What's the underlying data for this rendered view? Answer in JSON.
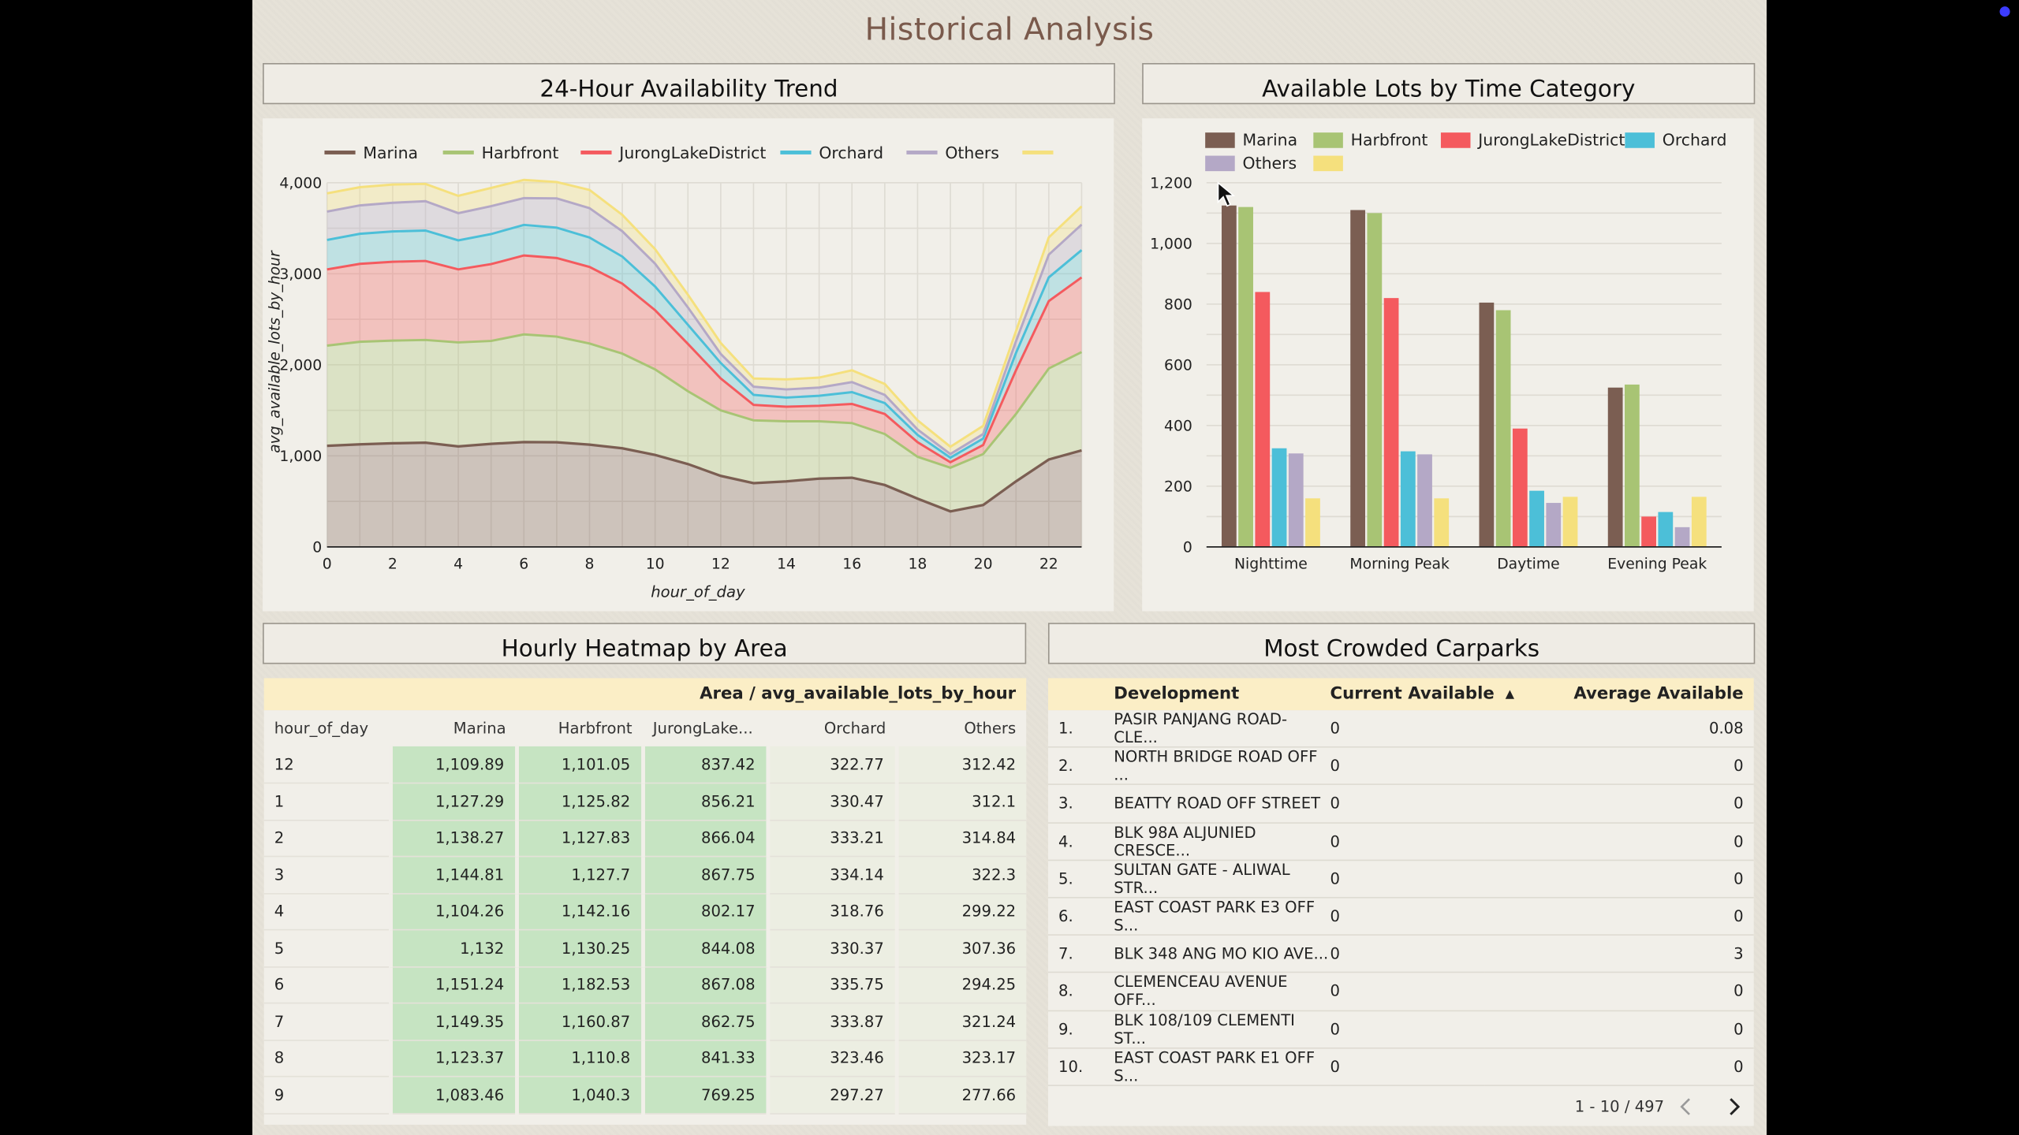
{
  "page": {
    "title": "Historical Analysis"
  },
  "trend": {
    "title": "24-Hour Availability Trend",
    "xlabel": "hour_of_day",
    "ylabel": "avg_available_lots_by_hour",
    "legend": [
      "Marina",
      "Harbfront",
      "JurongLakeDistrict",
      "Orchard",
      "Others",
      ""
    ],
    "x_ticks": [
      "0",
      "2",
      "4",
      "6",
      "8",
      "10",
      "12",
      "14",
      "16",
      "18",
      "20",
      "22"
    ],
    "y_ticks": [
      "0",
      "1,000",
      "2,000",
      "3,000",
      "4,000"
    ]
  },
  "bars": {
    "title": "Available Lots by Time Category",
    "legend": [
      "Marina",
      "Harbfront",
      "JurongLakeDistrict",
      "Orchard",
      "Others",
      ""
    ],
    "categories": [
      "Nighttime",
      "Morning Peak",
      "Daytime",
      "Evening Peak"
    ],
    "y_ticks": [
      "0",
      "200",
      "400",
      "600",
      "800",
      "1,000",
      "1,200"
    ]
  },
  "heatmap": {
    "title": "Hourly Heatmap by Area",
    "header": "Area / avg_available_lots_by_hour",
    "columns": [
      "hour_of_day",
      "Marina",
      "Harbfront",
      "JurongLake...",
      "Orchard",
      "Others"
    ],
    "rows": [
      [
        "12",
        "1,109.89",
        "1,101.05",
        "837.42",
        "322.77",
        "312.42"
      ],
      [
        "1",
        "1,127.29",
        "1,125.82",
        "856.21",
        "330.47",
        "312.1"
      ],
      [
        "2",
        "1,138.27",
        "1,127.83",
        "866.04",
        "333.21",
        "314.84"
      ],
      [
        "3",
        "1,144.81",
        "1,127.7",
        "867.75",
        "334.14",
        "322.3"
      ],
      [
        "4",
        "1,104.26",
        "1,142.16",
        "802.17",
        "318.76",
        "299.22"
      ],
      [
        "5",
        "1,132",
        "1,130.25",
        "844.08",
        "330.37",
        "307.36"
      ],
      [
        "6",
        "1,151.24",
        "1,182.53",
        "867.08",
        "335.75",
        "294.25"
      ],
      [
        "7",
        "1,149.35",
        "1,160.87",
        "862.75",
        "333.87",
        "321.24"
      ],
      [
        "8",
        "1,123.37",
        "1,110.8",
        "841.33",
        "323.46",
        "323.17"
      ],
      [
        "9",
        "1,083.46",
        "1,040.3",
        "769.25",
        "297.27",
        "277.66"
      ]
    ]
  },
  "crowded": {
    "title": "Most Crowded Carparks",
    "col_development": "Development",
    "col_current": "Current Available",
    "col_average": "Average Available",
    "rows": [
      [
        "1.",
        "PASIR PANJANG ROAD- CLE...",
        "0",
        "0.08"
      ],
      [
        "2.",
        "NORTH BRIDGE ROAD OFF ...",
        "0",
        "0"
      ],
      [
        "3.",
        "BEATTY ROAD OFF STREET",
        "0",
        "0"
      ],
      [
        "4.",
        "BLK 98A ALJUNIED CRESCE...",
        "0",
        "0"
      ],
      [
        "5.",
        "SULTAN GATE - ALIWAL STR...",
        "0",
        "0"
      ],
      [
        "6.",
        "EAST COAST PARK E3 OFF S...",
        "0",
        "0"
      ],
      [
        "7.",
        "BLK 348 ANG MO KIO AVE...",
        "0",
        "3"
      ],
      [
        "8.",
        "CLEMENCEAU AVENUE OFF...",
        "0",
        "0"
      ],
      [
        "9.",
        "BLK 108/109 CLEMENTI ST...",
        "0",
        "0"
      ],
      [
        "10.",
        "EAST COAST PARK E1 OFF S...",
        "0",
        "0"
      ]
    ],
    "pagination": "1 - 10 / 497"
  },
  "colors": {
    "marina": "#7b5e52",
    "harbfront": "#a8c474",
    "jurong": "#f45a5e",
    "orchard": "#4cbfd8",
    "others": "#b4a8c6",
    "extra": "#f5e07d"
  },
  "chart_data": [
    {
      "type": "area",
      "title": "24-Hour Availability Trend",
      "xlabel": "hour_of_day",
      "ylabel": "avg_available_lots_by_hour",
      "x": [
        0,
        1,
        2,
        3,
        4,
        5,
        6,
        7,
        8,
        9,
        10,
        11,
        12,
        13,
        14,
        15,
        16,
        17,
        18,
        19,
        20,
        21,
        22,
        23
      ],
      "ylim": [
        0,
        4000
      ],
      "stacked": true,
      "series": [
        {
          "name": "Marina",
          "values": [
            1110,
            1127,
            1138,
            1145,
            1104,
            1132,
            1151,
            1149,
            1123,
            1083,
            1010,
            910,
            780,
            700,
            720,
            750,
            760,
            680,
            530,
            390,
            460,
            720,
            960,
            1060
          ]
        },
        {
          "name": "Harbfront",
          "values": [
            1101,
            1126,
            1128,
            1128,
            1142,
            1130,
            1183,
            1161,
            1111,
            1040,
            940,
            800,
            720,
            690,
            660,
            630,
            600,
            560,
            460,
            480,
            560,
            740,
            1000,
            1080
          ]
        },
        {
          "name": "JurongLakeDistrict",
          "values": [
            837,
            856,
            866,
            868,
            802,
            844,
            867,
            863,
            841,
            769,
            650,
            520,
            350,
            170,
            160,
            170,
            210,
            220,
            160,
            60,
            100,
            480,
            740,
            820
          ]
        },
        {
          "name": "Orchard",
          "values": [
            323,
            330,
            333,
            334,
            319,
            330,
            336,
            334,
            323,
            297,
            260,
            210,
            170,
            110,
            100,
            110,
            130,
            120,
            80,
            50,
            70,
            190,
            260,
            300
          ]
        },
        {
          "name": "Others",
          "values": [
            312,
            312,
            315,
            322,
            299,
            307,
            294,
            321,
            323,
            278,
            250,
            190,
            100,
            90,
            90,
            90,
            110,
            90,
            60,
            40,
            50,
            130,
            250,
            280
          ]
        },
        {
          "name": "",
          "values": [
            200,
            200,
            200,
            190,
            190,
            200,
            200,
            180,
            200,
            180,
            160,
            140,
            120,
            90,
            110,
            110,
            130,
            120,
            100,
            80,
            90,
            110,
            190,
            200
          ]
        }
      ]
    },
    {
      "type": "bar",
      "title": "Available Lots by Time Category",
      "categories": [
        "Nighttime",
        "Morning Peak",
        "Daytime",
        "Evening Peak"
      ],
      "ylim": [
        0,
        1200
      ],
      "series": [
        {
          "name": "Marina",
          "values": [
            1125,
            1110,
            805,
            525
          ]
        },
        {
          "name": "Harbfront",
          "values": [
            1120,
            1100,
            780,
            535
          ]
        },
        {
          "name": "JurongLakeDistrict",
          "values": [
            840,
            820,
            390,
            100
          ]
        },
        {
          "name": "Orchard",
          "values": [
            325,
            315,
            185,
            115
          ]
        },
        {
          "name": "Others",
          "values": [
            308,
            305,
            145,
            65
          ]
        },
        {
          "name": "",
          "values": [
            160,
            160,
            165,
            165
          ]
        }
      ]
    }
  ]
}
